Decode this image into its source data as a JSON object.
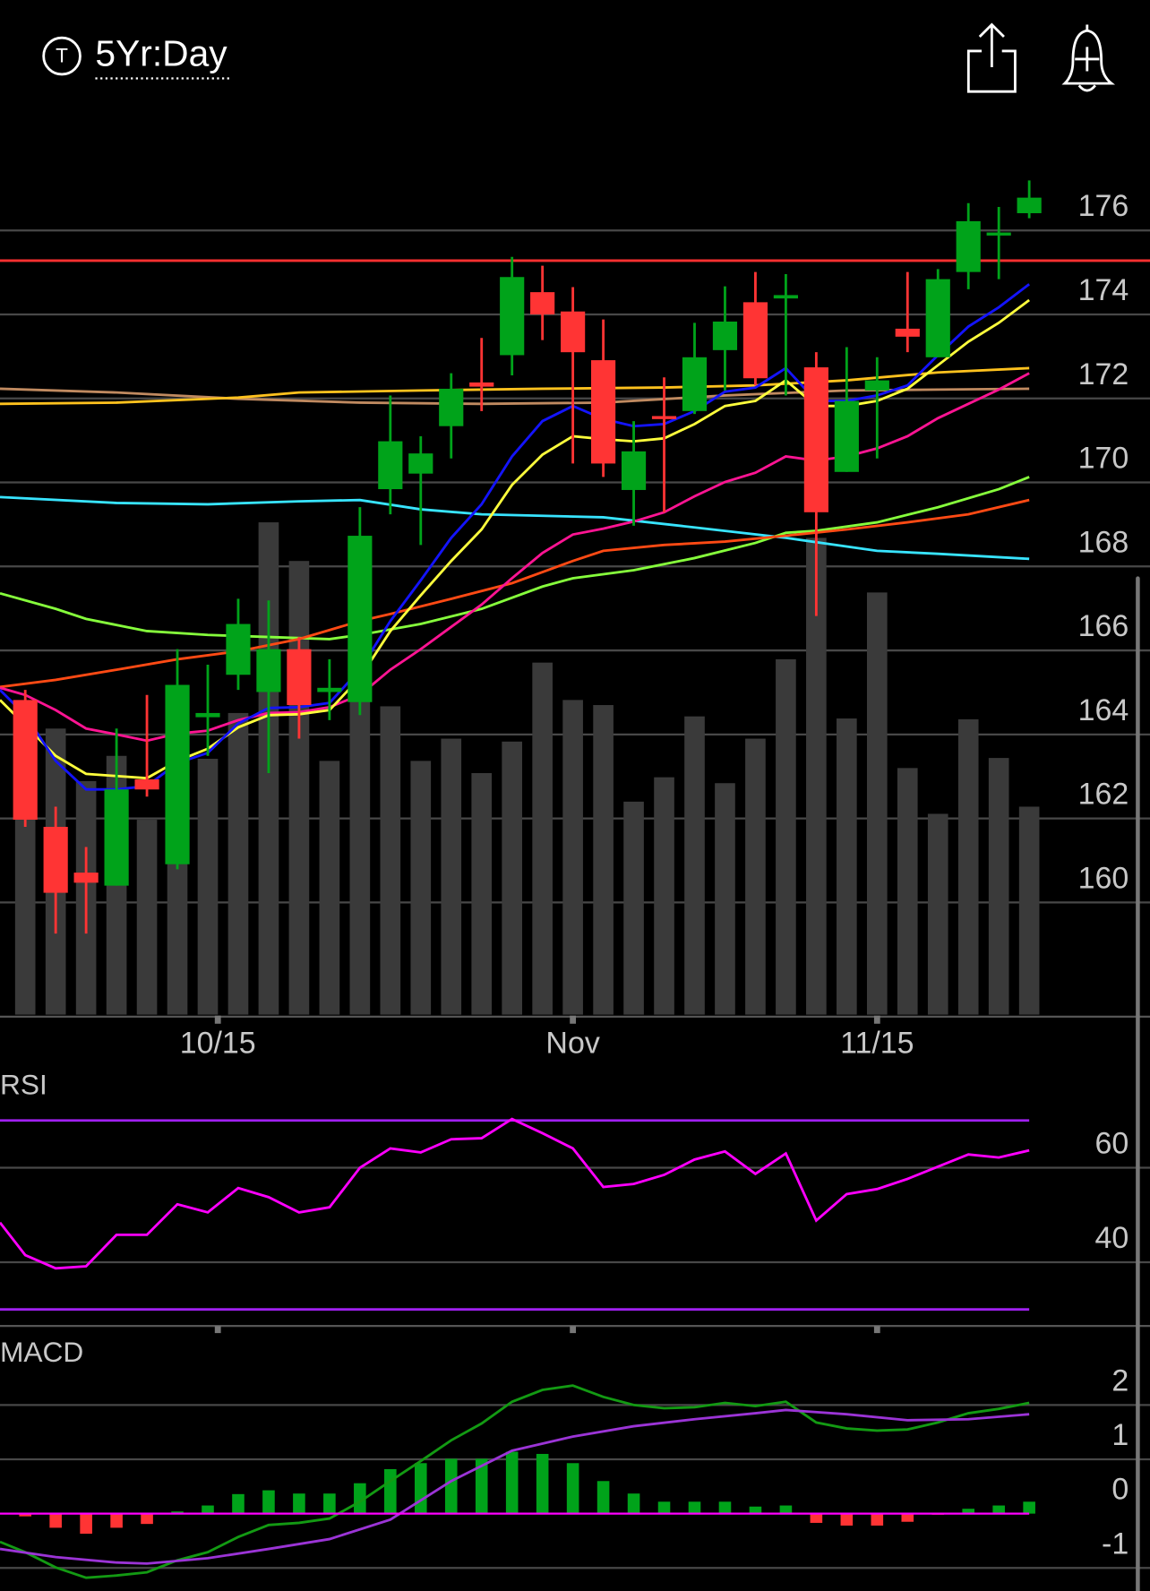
{
  "header": {
    "symbol_icon": "T",
    "period": "5Yr:Day"
  },
  "chart_data": [
    {
      "type": "candlestick",
      "ylim": [
        157.33,
        178.34
      ],
      "yticks": [
        160,
        162,
        164,
        166,
        168,
        170,
        172,
        174,
        176
      ],
      "xlim": [
        -0.83,
        36.97
      ],
      "xticks": [
        {
          "value": 6.33,
          "label": "10/15"
        },
        {
          "value": 18,
          "label": "Nov"
        },
        {
          "value": 28,
          "label": "11/15"
        }
      ],
      "grid": true,
      "up_color": "#00a31a",
      "down_color": "#ff3434",
      "open": [
        164.82,
        161.8,
        160.71,
        160.4,
        162.93,
        160.91,
        164.41,
        165.42,
        165.01,
        166.03,
        165.01,
        164.77,
        169.84,
        170.21,
        171.34,
        172.38,
        173.03,
        174.53,
        174.07,
        172.91,
        169.82,
        171.58,
        171.7,
        173.15,
        174.29,
        174.38,
        172.74,
        170.25,
        172.19,
        173.66,
        172.98,
        175.01,
        175.88,
        176.41
      ],
      "high": [
        165.06,
        162.28,
        161.32,
        164.14,
        164.94,
        166.03,
        165.66,
        167.23,
        167.19,
        166.32,
        165.79,
        169.41,
        172.07,
        171.1,
        172.6,
        173.44,
        175.37,
        175.16,
        174.65,
        173.88,
        171.46,
        172.5,
        173.8,
        174.67,
        175.01,
        174.96,
        173.1,
        173.22,
        172.98,
        175.01,
        175.08,
        176.65,
        176.56,
        177.19
      ],
      "low": [
        161.8,
        159.26,
        159.26,
        160.4,
        162.52,
        160.79,
        163.49,
        165.06,
        163.08,
        163.9,
        164.34,
        164.46,
        169.24,
        168.51,
        170.57,
        171.7,
        172.55,
        173.39,
        170.45,
        170.13,
        168.97,
        169.29,
        171.63,
        172.19,
        172.31,
        172.07,
        166.82,
        170.25,
        170.57,
        173.1,
        172.98,
        174.6,
        174.84,
        176.29
      ],
      "close": [
        161.97,
        160.23,
        160.47,
        162.69,
        162.69,
        165.18,
        164.51,
        166.63,
        166.03,
        164.7,
        165.11,
        168.73,
        170.98,
        170.69,
        172.23,
        172.28,
        174.89,
        174.0,
        173.1,
        170.45,
        170.74,
        171.51,
        172.98,
        173.83,
        172.48,
        174.46,
        169.29,
        171.94,
        172.43,
        173.47,
        174.84,
        176.22,
        175.95,
        176.78
      ],
      "volume": {
        "color": "#3a3a3a",
        "values": [
          164.58,
          164.14,
          162.89,
          163.49,
          161.97,
          164.09,
          163.42,
          164.51,
          169.05,
          168.13,
          163.37,
          164.82,
          164.67,
          163.37,
          163.9,
          163.08,
          163.83,
          165.71,
          164.82,
          164.7,
          162.4,
          162.98,
          164.43,
          162.84,
          163.9,
          165.79,
          168.68,
          164.38,
          167.38,
          163.2,
          162.11,
          164.36,
          163.44,
          162.28
        ]
      },
      "hline": {
        "value": 175.28,
        "color": "#ff3030"
      },
      "lines": [
        {
          "color": "#c08a60",
          "x": [
            -0.83,
            3,
            7,
            11,
            15,
            19,
            23,
            27,
            30,
            33
          ],
          "values": [
            172.23,
            172.14,
            171.99,
            171.9,
            171.87,
            171.9,
            172.07,
            172.19,
            172.21,
            172.23
          ]
        },
        {
          "color": "#ffc21e",
          "x": [
            -0.83,
            3,
            7,
            9,
            13,
            17,
            21,
            24,
            27,
            30,
            33
          ],
          "values": [
            171.87,
            171.9,
            172.02,
            172.14,
            172.19,
            172.23,
            172.26,
            172.31,
            172.43,
            172.62,
            172.72
          ]
        },
        {
          "color": "#38e4ff",
          "x": [
            -0.83,
            3,
            6,
            9,
            11,
            13,
            15,
            19,
            22,
            25,
            28,
            30,
            33
          ],
          "values": [
            169.65,
            169.51,
            169.48,
            169.55,
            169.58,
            169.36,
            169.24,
            169.17,
            168.93,
            168.68,
            168.37,
            168.3,
            168.18
          ]
        },
        {
          "color": "#86ff3c",
          "x": [
            -0.83,
            1,
            2,
            4,
            6,
            8,
            10,
            11,
            13,
            15,
            17,
            18,
            20,
            22,
            24,
            25,
            26,
            28,
            30,
            32,
            33
          ],
          "values": [
            167.36,
            166.99,
            166.75,
            166.46,
            166.37,
            166.32,
            166.27,
            166.37,
            166.63,
            166.99,
            167.52,
            167.72,
            167.91,
            168.2,
            168.56,
            168.8,
            168.85,
            169.05,
            169.41,
            169.84,
            170.13
          ]
        },
        {
          "color": "#ff4a14",
          "x": [
            -0.83,
            1,
            3,
            5,
            7,
            9,
            11,
            12,
            14,
            16,
            18,
            19,
            21,
            23,
            25,
            27,
            29,
            31,
            33
          ],
          "values": [
            165.13,
            165.3,
            165.54,
            165.79,
            165.98,
            166.27,
            166.7,
            166.87,
            167.23,
            167.6,
            168.13,
            168.37,
            168.51,
            168.59,
            168.73,
            168.88,
            169.05,
            169.24,
            169.58
          ]
        },
        {
          "color": "#ff1493",
          "x": [
            -0.83,
            0,
            1,
            2,
            3,
            4,
            5,
            6,
            7,
            8,
            9,
            10,
            11,
            12,
            13,
            14,
            15,
            16,
            17,
            18,
            19,
            20,
            21,
            22,
            23,
            24,
            25,
            26,
            27,
            28,
            29,
            30,
            31,
            32,
            33
          ],
          "values": [
            165.11,
            164.94,
            164.58,
            164.14,
            164.0,
            163.85,
            164.02,
            164.09,
            164.34,
            164.51,
            164.53,
            164.65,
            164.94,
            165.54,
            166.03,
            166.56,
            167.09,
            167.72,
            168.32,
            168.76,
            168.9,
            169.07,
            169.29,
            169.67,
            170.01,
            170.23,
            170.62,
            170.52,
            170.62,
            170.81,
            171.1,
            171.53,
            171.87,
            172.21,
            172.6
          ]
        },
        {
          "color": "#ffff3c",
          "x": [
            -0.83,
            0,
            1,
            2,
            3,
            4,
            5,
            6,
            7,
            8,
            9,
            10,
            11,
            12,
            13,
            14,
            15,
            16,
            17,
            18,
            19,
            20,
            21,
            22,
            23,
            24,
            25,
            26,
            27,
            28,
            29,
            30,
            31,
            32,
            33
          ],
          "values": [
            164.82,
            164.22,
            163.49,
            163.06,
            163.01,
            162.96,
            163.37,
            163.66,
            164.17,
            164.46,
            164.48,
            164.58,
            165.35,
            166.46,
            167.31,
            168.13,
            168.88,
            169.94,
            170.66,
            171.1,
            171.03,
            170.98,
            171.05,
            171.39,
            171.82,
            171.94,
            172.43,
            171.82,
            171.82,
            171.94,
            172.23,
            172.79,
            173.35,
            173.8,
            174.34
          ]
        },
        {
          "color": "#1414ff",
          "x": [
            -0.83,
            0,
            1,
            2,
            3,
            4,
            5,
            6,
            7,
            8,
            9,
            10,
            11,
            12,
            13,
            14,
            15,
            16,
            17,
            18,
            19,
            20,
            21,
            22,
            23,
            24,
            25,
            26,
            27,
            28,
            29,
            30,
            31,
            32,
            33
          ],
          "values": [
            165.06,
            164.46,
            163.37,
            162.69,
            162.69,
            162.77,
            163.32,
            163.56,
            164.26,
            164.63,
            164.65,
            164.75,
            165.54,
            166.7,
            167.67,
            168.68,
            169.48,
            170.62,
            171.46,
            171.82,
            171.51,
            171.34,
            171.39,
            171.7,
            172.16,
            172.26,
            172.72,
            171.94,
            171.94,
            172.07,
            172.31,
            173.03,
            173.71,
            174.17,
            174.72
          ]
        }
      ]
    },
    {
      "type": "rsi",
      "label": "RSI",
      "ylim": [
        26.5,
        80.6
      ],
      "yticks": [
        40,
        60
      ],
      "grid": true,
      "bands": [
        30,
        70
      ],
      "band_color": "#a020f0",
      "series": [
        {
          "color": "#ff00ff",
          "x": [
            -0.83,
            0,
            1,
            2,
            3,
            4,
            5,
            6,
            7,
            8,
            9,
            10,
            11,
            12,
            13,
            14,
            15,
            16,
            17,
            18,
            19,
            20,
            21,
            22,
            23,
            24,
            25,
            26,
            27,
            28,
            29,
            30,
            31,
            32,
            33
          ],
          "values": [
            48.39,
            41.51,
            38.71,
            39.14,
            45.81,
            45.81,
            52.26,
            50.54,
            55.7,
            53.76,
            50.54,
            51.61,
            60.0,
            64.09,
            63.23,
            66.02,
            66.24,
            70.32,
            67.31,
            64.09,
            55.91,
            56.56,
            58.49,
            61.72,
            63.44,
            58.71,
            63.01,
            48.82,
            54.41,
            55.48,
            57.63,
            60.22,
            62.8,
            62.15,
            63.66
          ]
        }
      ]
    },
    {
      "type": "macd",
      "label": "MACD",
      "ylim": [
        -1.42,
        3.4
      ],
      "yticks": [
        -1,
        0,
        1,
        2
      ],
      "grid": true,
      "zero_line_color": "#ff00ff",
      "series": [
        {
          "color": "#139a13",
          "x": [
            -0.83,
            0,
            1,
            2,
            3,
            4,
            5,
            6,
            7,
            8,
            9,
            10,
            11,
            12,
            13,
            14,
            15,
            16,
            17,
            18,
            19,
            20,
            21,
            22,
            23,
            24,
            25,
            26,
            27,
            28,
            29,
            30,
            31,
            32,
            33
          ],
          "values": [
            -0.52,
            -0.71,
            -0.99,
            -1.18,
            -1.14,
            -1.08,
            -0.86,
            -0.71,
            -0.43,
            -0.21,
            -0.17,
            -0.09,
            0.22,
            0.6,
            0.97,
            1.35,
            1.66,
            2.06,
            2.28,
            2.36,
            2.15,
            2.0,
            1.94,
            1.96,
            2.04,
            1.98,
            2.06,
            1.68,
            1.57,
            1.53,
            1.55,
            1.68,
            1.85,
            1.93,
            2.04
          ]
        },
        {
          "color": "#9b34d6",
          "x": [
            -0.83,
            1,
            3,
            4,
            6,
            8,
            10,
            12,
            14,
            16,
            18,
            20,
            22,
            24,
            25,
            27,
            29,
            31,
            33
          ],
          "values": [
            -0.65,
            -0.8,
            -0.9,
            -0.92,
            -0.82,
            -0.65,
            -0.47,
            -0.11,
            0.6,
            1.16,
            1.42,
            1.61,
            1.74,
            1.85,
            1.91,
            1.83,
            1.72,
            1.74,
            1.83
          ]
        }
      ],
      "histogram": {
        "up_color": "#00a31a",
        "down_color": "#ff3434",
        "values": [
          -0.05,
          -0.26,
          -0.37,
          -0.26,
          -0.19,
          0.04,
          0.15,
          0.36,
          0.43,
          0.37,
          0.37,
          0.56,
          0.82,
          0.93,
          1.01,
          1.01,
          1.14,
          1.1,
          0.93,
          0.6,
          0.37,
          0.22,
          0.22,
          0.22,
          0.13,
          0.15,
          -0.17,
          -0.22,
          -0.22,
          -0.15,
          -0.02,
          0.09,
          0.15,
          0.22
        ]
      }
    }
  ]
}
